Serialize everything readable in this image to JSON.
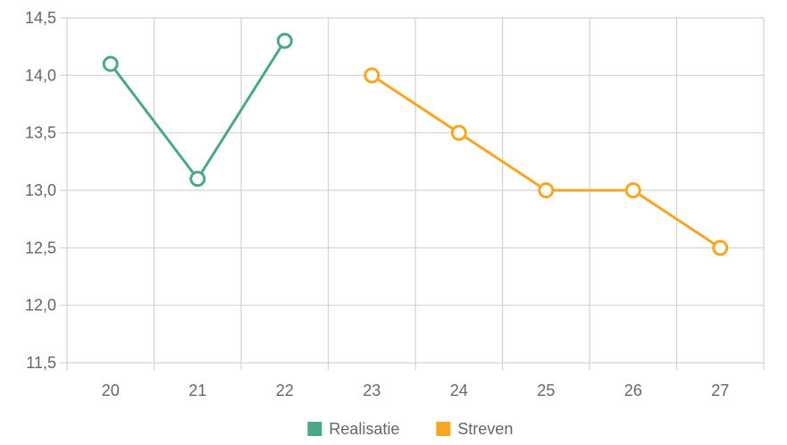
{
  "chart_data": {
    "type": "line",
    "categories": [
      "20",
      "21",
      "22",
      "23",
      "24",
      "25",
      "26",
      "27"
    ],
    "ylim": [
      11.5,
      14.5
    ],
    "y_ticks": [
      "11,5",
      "12,0",
      "12,5",
      "13,0",
      "13,5",
      "14,0",
      "14,5"
    ],
    "grid": true,
    "legend_position": "bottom",
    "series": [
      {
        "name": "Realisatie",
        "color": "#4aa889",
        "values": [
          14.1,
          13.1,
          14.3,
          null,
          null,
          null,
          null,
          null
        ]
      },
      {
        "name": "Streven",
        "color": "#f5a623",
        "values": [
          null,
          null,
          null,
          14.0,
          13.5,
          13.0,
          13.0,
          12.5
        ]
      }
    ]
  }
}
